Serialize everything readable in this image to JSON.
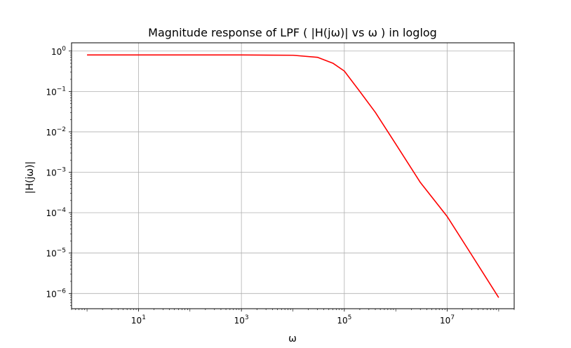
{
  "chart_data": {
    "type": "line",
    "title": "Magnitude response of LPF ( |H(jω)| vs ω ) in loglog",
    "xlabel": "ω",
    "ylabel": "|H(jω)|",
    "xscale": "log",
    "yscale": "log",
    "xlim": [
      0.5,
      200000000
    ],
    "ylim": [
      4.2e-07,
      1.6
    ],
    "x_ticks": [
      {
        "value": 10,
        "base": "10",
        "exp": "1"
      },
      {
        "value": 1000,
        "base": "10",
        "exp": "3"
      },
      {
        "value": 100000,
        "base": "10",
        "exp": "5"
      },
      {
        "value": 10000000,
        "base": "10",
        "exp": "7"
      }
    ],
    "y_ticks": [
      {
        "value": 1,
        "base": "10",
        "exp": "0"
      },
      {
        "value": 0.1,
        "base": "10",
        "exp": "−1"
      },
      {
        "value": 0.01,
        "base": "10",
        "exp": "−2"
      },
      {
        "value": 0.001,
        "base": "10",
        "exp": "−3"
      },
      {
        "value": 0.0001,
        "base": "10",
        "exp": "−4"
      },
      {
        "value": 1e-05,
        "base": "10",
        "exp": "−5"
      },
      {
        "value": 1e-06,
        "base": "10",
        "exp": "−6"
      }
    ],
    "grid": true,
    "series": [
      {
        "color": "#ff0000",
        "x": [
          1,
          10,
          100,
          1000,
          10000,
          30000,
          60000,
          100000,
          200000,
          400000,
          1000000,
          3000000,
          10000000,
          30000000,
          100000000
        ],
        "y": [
          0.8,
          0.8,
          0.8,
          0.8,
          0.787,
          0.7,
          0.5,
          0.32,
          0.1,
          0.0305,
          0.005,
          0.00056,
          8e-05,
          8.9e-06,
          7.9e-07
        ]
      }
    ]
  }
}
